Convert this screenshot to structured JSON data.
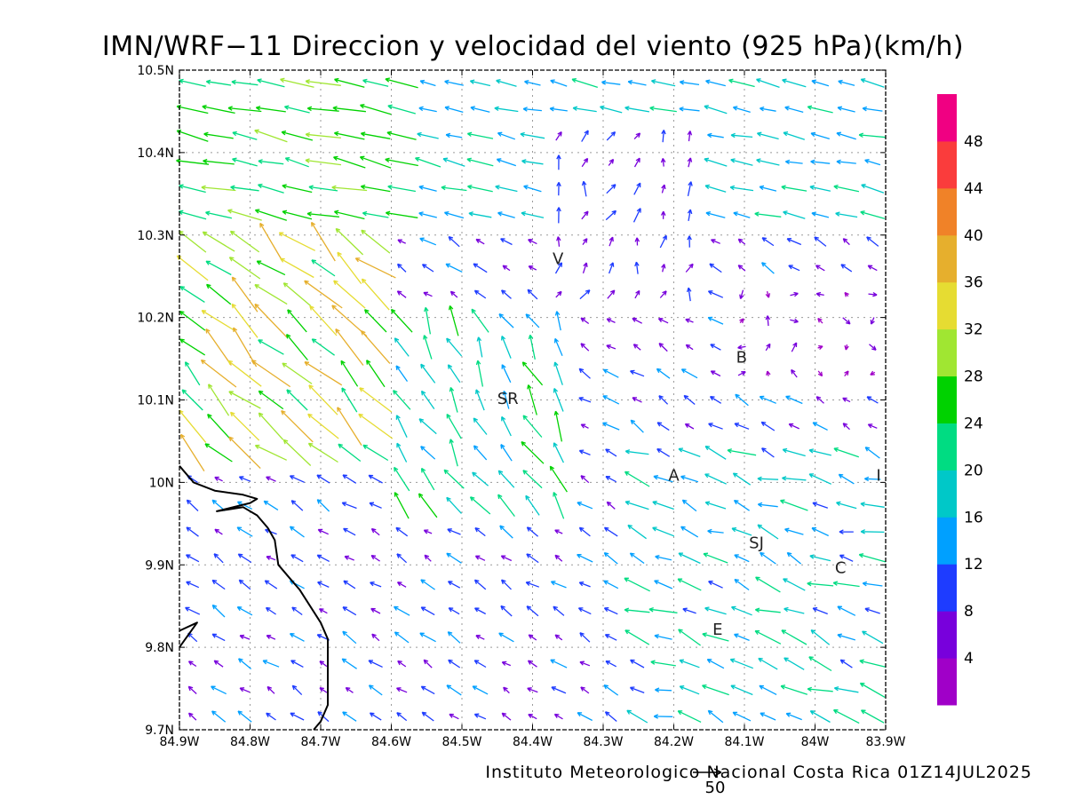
{
  "title": "IMN/WRF−11 Direccion y velocidad del viento (925 hPa)(km/h)",
  "footer": "Instituto Meteorologico Nacional Costa Rica 01Z14JUL2025",
  "reference_vector": {
    "value": 50,
    "label": "50"
  },
  "map": {
    "lon_range": [
      -84.9,
      -83.9
    ],
    "lat_range": [
      9.7,
      10.5
    ],
    "lon_ticks": [
      {
        "value": -84.9,
        "label": "84.9W"
      },
      {
        "value": -84.8,
        "label": "84.8W"
      },
      {
        "value": -84.7,
        "label": "84.7W"
      },
      {
        "value": -84.6,
        "label": "84.6W"
      },
      {
        "value": -84.5,
        "label": "84.5W"
      },
      {
        "value": -84.4,
        "label": "84.4W"
      },
      {
        "value": -84.3,
        "label": "84.3W"
      },
      {
        "value": -84.2,
        "label": "84.2W"
      },
      {
        "value": -84.1,
        "label": "84.1W"
      },
      {
        "value": -84.0,
        "label": "84W"
      },
      {
        "value": -83.9,
        "label": "83.9W"
      }
    ],
    "lat_ticks": [
      {
        "value": 9.7,
        "label": "9.7N"
      },
      {
        "value": 9.8,
        "label": "9.8N"
      },
      {
        "value": 9.9,
        "label": "9.9N"
      },
      {
        "value": 10.0,
        "label": "10N"
      },
      {
        "value": 10.1,
        "label": "10.1N"
      },
      {
        "value": 10.2,
        "label": "10.2N"
      },
      {
        "value": 10.3,
        "label": "10.3N"
      },
      {
        "value": 10.4,
        "label": "10.4N"
      },
      {
        "value": 10.5,
        "label": "10.5N"
      }
    ],
    "grid": true,
    "coastline": [
      [
        [
          -84.9,
          10.02
        ],
        [
          -84.88,
          10.0
        ],
        [
          -84.85,
          9.99
        ],
        [
          -84.81,
          9.985
        ],
        [
          -84.79,
          9.98
        ],
        [
          -84.8,
          9.975
        ],
        [
          -84.847,
          9.965
        ],
        [
          -84.81,
          9.97
        ],
        [
          -84.79,
          9.96
        ],
        [
          -84.775,
          9.945
        ],
        [
          -84.765,
          9.93
        ],
        [
          -84.76,
          9.9
        ],
        [
          -84.745,
          9.885
        ],
        [
          -84.73,
          9.87
        ],
        [
          -84.715,
          9.85
        ],
        [
          -84.7,
          9.83
        ],
        [
          -84.69,
          9.81
        ],
        [
          -84.69,
          9.78
        ],
        [
          -84.69,
          9.745
        ],
        [
          -84.69,
          9.73
        ],
        [
          -84.7,
          9.71
        ],
        [
          -84.71,
          9.7
        ]
      ],
      [
        [
          -84.9,
          9.82
        ],
        [
          -84.875,
          9.83
        ],
        [
          -84.9,
          9.8
        ]
      ]
    ],
    "place_labels": [
      {
        "name": "V",
        "lon": -84.364,
        "lat": 10.265
      },
      {
        "name": "SR",
        "lon": -84.435,
        "lat": 10.095
      },
      {
        "name": "B",
        "lon": -84.104,
        "lat": 10.145
      },
      {
        "name": "A",
        "lon": -84.2,
        "lat": 10.002
      },
      {
        "name": "I",
        "lon": -83.91,
        "lat": 10.002
      },
      {
        "name": "SJ",
        "lon": -84.083,
        "lat": 9.92
      },
      {
        "name": "C",
        "lon": -83.964,
        "lat": 9.89
      },
      {
        "name": "E",
        "lon": -84.138,
        "lat": 9.815
      }
    ]
  },
  "colorbar": {
    "unit": "km/h",
    "colors": [
      "#a000c8",
      "#7800dc",
      "#1e3cff",
      "#00a0ff",
      "#00c8c8",
      "#00dc82",
      "#00d200",
      "#a0e632",
      "#e6dc32",
      "#e6af2d",
      "#f08228",
      "#fa3c3c",
      "#f00082"
    ],
    "labels": [
      "4",
      "8",
      "12",
      "16",
      "20",
      "24",
      "28",
      "32",
      "36",
      "40",
      "44",
      "48"
    ]
  },
  "chart_data": {
    "type": "vector-field",
    "variable": "wind direction and speed",
    "level": "925 hPa",
    "units": "km/h",
    "speed_range": [
      0,
      52
    ]
  }
}
